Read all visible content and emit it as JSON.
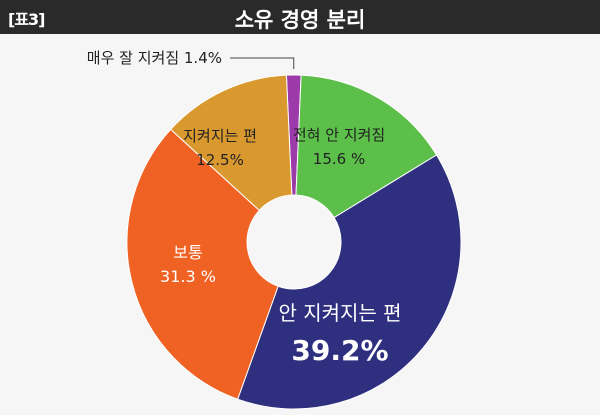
{
  "header": {
    "tag": "[표3]",
    "title": "소유 경영 분리"
  },
  "chart_data": {
    "type": "pie",
    "donut": true,
    "title": "소유 경영 분리",
    "unit": "%",
    "slices": [
      {
        "label": "매우 잘 지켜짐",
        "value": 1.4,
        "value_label": "1.4%",
        "color": "#9b3aa8"
      },
      {
        "label": "전혀 안 지켜짐",
        "value": 15.6,
        "value_label": "15.6 %",
        "color": "#5bbf4a"
      },
      {
        "label": "안 지켜지는 편",
        "value": 39.2,
        "value_label": "39.2%",
        "color": "#2e2f7f"
      },
      {
        "label": "보통",
        "value": 31.3,
        "value_label": "31.3 %",
        "color": "#ef6223"
      },
      {
        "label": "지켜지는 편",
        "value": 12.5,
        "value_label": "12.5%",
        "color": "#d9992e"
      }
    ]
  }
}
